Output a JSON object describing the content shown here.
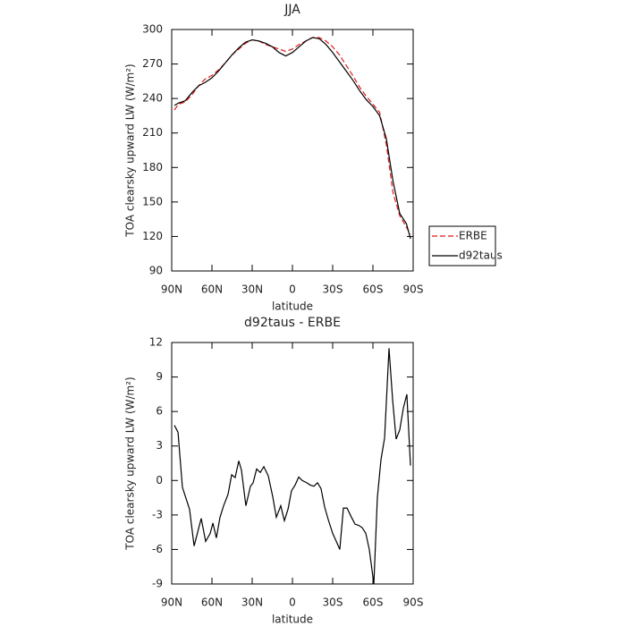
{
  "chart_data": [
    {
      "type": "line",
      "title": "JJA",
      "x_label": "latitude",
      "y_label": "TOA clearsky upward LW (W/m²)",
      "x": [
        88,
        85,
        80,
        75,
        70,
        65,
        60,
        55,
        50,
        45,
        40,
        35,
        30,
        25,
        20,
        15,
        10,
        5,
        0,
        -5,
        -10,
        -15,
        -20,
        -25,
        -30,
        -35,
        -40,
        -45,
        -50,
        -55,
        -60,
        -65,
        -70,
        -75,
        -80,
        -85,
        -88
      ],
      "series": [
        {
          "name": "ERBE",
          "color": "#e41a1c",
          "style": "dashed",
          "values": [
            230,
            235,
            237,
            243,
            251,
            257,
            260,
            265,
            271,
            278,
            283,
            288,
            291,
            290,
            287,
            285,
            283,
            281,
            283,
            287,
            290,
            293,
            293,
            290,
            285,
            278,
            269,
            260,
            250,
            242,
            235,
            228,
            200,
            158,
            138,
            128,
            122
          ]
        },
        {
          "name": "d92taus",
          "color": "#000000",
          "style": "solid",
          "values": [
            234,
            236,
            238,
            245,
            251,
            254,
            258,
            264,
            271,
            278,
            284,
            289,
            291,
            290,
            288,
            285,
            280,
            277,
            280,
            285,
            290,
            293,
            292,
            287,
            280,
            272,
            264,
            256,
            247,
            239,
            233,
            225,
            205,
            168,
            140,
            131,
            118
          ]
        }
      ],
      "xlim": [
        90,
        -90
      ],
      "xticks": [
        {
          "value": 90,
          "label": "90N"
        },
        {
          "value": 60,
          "label": "60N"
        },
        {
          "value": 30,
          "label": "30N"
        },
        0,
        {
          "value": -30,
          "label": "30S"
        },
        {
          "value": -60,
          "label": "60S"
        },
        {
          "value": -90,
          "label": "90S"
        }
      ],
      "ylim": [
        90,
        300
      ],
      "yticks": [
        90,
        120,
        150,
        180,
        210,
        240,
        270,
        300
      ],
      "legend": "right"
    },
    {
      "type": "line",
      "title": "d92taus - ERBE",
      "x_label": "latitude",
      "y_label": "TOA clearsky upward LW (W/m²)",
      "x": [
        88,
        85.3,
        82,
        76.7,
        73.3,
        68,
        64.7,
        61.3,
        59.3,
        56.7,
        54,
        51.3,
        48,
        45.3,
        42.7,
        40,
        38,
        34.7,
        31.3,
        29.3,
        26.7,
        24,
        21.3,
        18,
        14.7,
        12,
        8.7,
        6,
        3.3,
        0.7,
        -2,
        -4.7,
        -7.3,
        -10.7,
        -13.3,
        -16,
        -18.7,
        -21.3,
        -24,
        -26.7,
        -30,
        -32.7,
        -35.3,
        -38,
        -40.7,
        -44,
        -46.7,
        -49.3,
        -52,
        -54.7,
        -57.3,
        -60.7,
        -63.3,
        -66,
        -68.7,
        -72,
        -74.7,
        -77.3,
        -80,
        -82.7,
        -85.3,
        -88
      ],
      "values": [
        4.8,
        4.2,
        -0.6,
        -2.5,
        -5.7,
        -3.3,
        -5.3,
        -4.6,
        -3.7,
        -5,
        -3.2,
        -2.2,
        -1.2,
        0.5,
        0.25,
        1.7,
        0.9,
        -2.2,
        -0.5,
        -0.2,
        1.0,
        0.7,
        1.2,
        0.4,
        -1.4,
        -3.2,
        -2.2,
        -3.5,
        -2.5,
        -0.9,
        -0.4,
        0.3,
        0,
        -0.2,
        -0.4,
        -0.5,
        -0.2,
        -0.7,
        -2.3,
        -3.4,
        -4.6,
        -5.3,
        -6.0,
        -2.4,
        -2.4,
        -3.2,
        -3.8,
        -3.9,
        -4.1,
        -4.6,
        -6.0,
        -9.0,
        -1.5,
        1.8,
        3.7,
        11.5,
        7,
        3.6,
        4.4,
        6.3,
        7.5,
        1.3
      ],
      "color": "#000000",
      "xlim": [
        90,
        -90
      ],
      "xticks": [
        {
          "value": 90,
          "label": "90N"
        },
        {
          "value": 60,
          "label": "60N"
        },
        {
          "value": 30,
          "label": "30N"
        },
        0,
        {
          "value": -30,
          "label": "30S"
        },
        {
          "value": -60,
          "label": "60S"
        },
        {
          "value": -90,
          "label": "90S"
        }
      ],
      "ylim": [
        -9,
        12
      ],
      "yticks": [
        -9,
        -6,
        -3,
        0,
        3,
        6,
        9,
        12
      ]
    }
  ]
}
